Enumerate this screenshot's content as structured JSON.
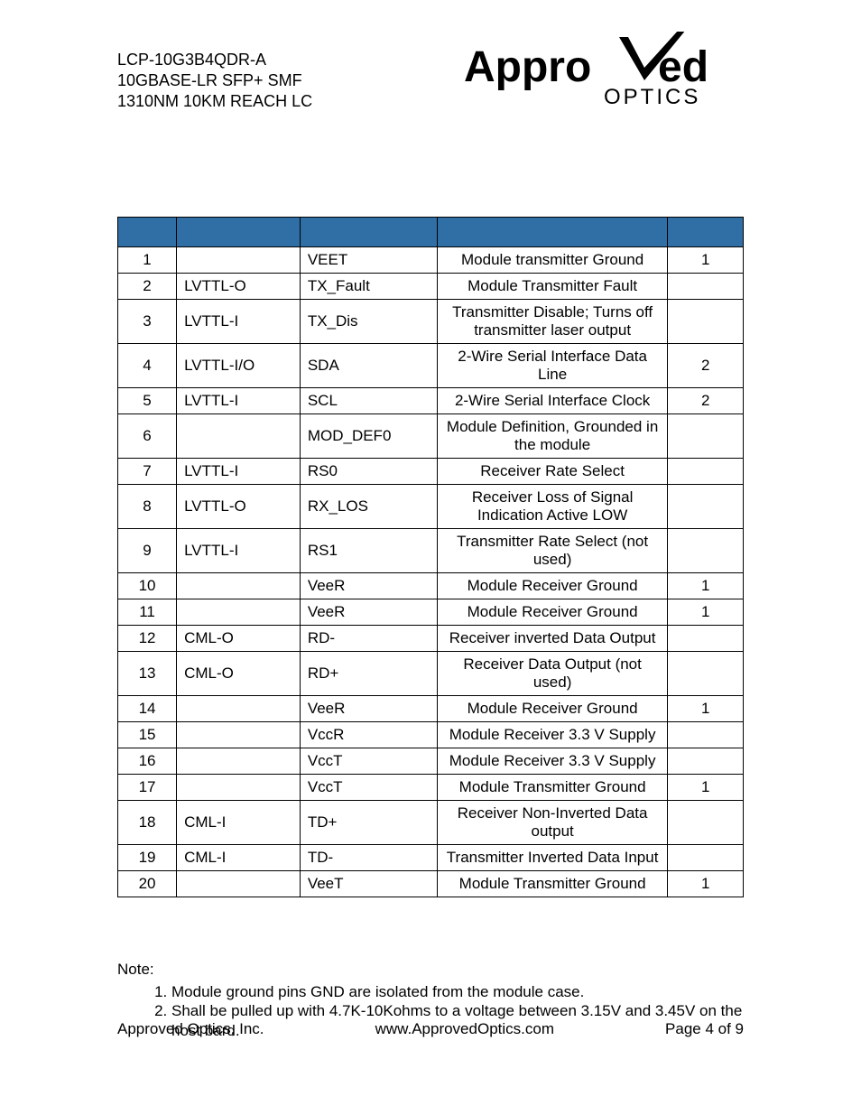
{
  "header": {
    "line1": "LCP-10G3B4QDR-A",
    "line2": "10GBASE-LR SFP+ SMF",
    "line3": "1310NM 10KM REACH LC"
  },
  "logo": {
    "word_main": "Appro",
    "word_tail": "ed",
    "subtitle": "OPTICS",
    "color": "#000000"
  },
  "table": {
    "header_bg": "#2f6fa6",
    "rows": [
      {
        "pin": "1",
        "logic": "",
        "symbol": "VEET",
        "desc": "Module transmitter Ground",
        "note": "1"
      },
      {
        "pin": "2",
        "logic": "LVTTL-O",
        "symbol": "TX_Fault",
        "desc": "Module Transmitter Fault",
        "note": ""
      },
      {
        "pin": "3",
        "logic": "LVTTL-I",
        "symbol": "TX_Dis",
        "desc": "Transmitter Disable; Turns off transmitter laser output",
        "note": ""
      },
      {
        "pin": "4",
        "logic": "LVTTL-I/O",
        "symbol": "SDA",
        "desc": "2-Wire Serial Interface Data Line",
        "note": "2"
      },
      {
        "pin": "5",
        "logic": "LVTTL-I",
        "symbol": "SCL",
        "desc": "2-Wire Serial Interface Clock",
        "note": "2"
      },
      {
        "pin": "6",
        "logic": "",
        "symbol": "MOD_DEF0",
        "desc": "Module Definition, Grounded in the module",
        "note": ""
      },
      {
        "pin": "7",
        "logic": "LVTTL-I",
        "symbol": "RS0",
        "desc": "Receiver Rate Select",
        "note": ""
      },
      {
        "pin": "8",
        "logic": "LVTTL-O",
        "symbol": "RX_LOS",
        "desc": "Receiver Loss of Signal Indication Active LOW",
        "note": ""
      },
      {
        "pin": "9",
        "logic": "LVTTL-I",
        "symbol": "RS1",
        "desc": "Transmitter Rate Select (not used)",
        "note": ""
      },
      {
        "pin": "10",
        "logic": "",
        "symbol": "VeeR",
        "desc": "Module Receiver Ground",
        "note": "1"
      },
      {
        "pin": "11",
        "logic": "",
        "symbol": "VeeR",
        "desc": "Module Receiver Ground",
        "note": "1"
      },
      {
        "pin": "12",
        "logic": "CML-O",
        "symbol": "RD-",
        "desc": "Receiver inverted Data Output",
        "note": ""
      },
      {
        "pin": "13",
        "logic": "CML-O",
        "symbol": "RD+",
        "desc": "Receiver Data Output (not used)",
        "note": ""
      },
      {
        "pin": "14",
        "logic": "",
        "symbol": "VeeR",
        "desc": "Module Receiver Ground",
        "note": "1"
      },
      {
        "pin": "15",
        "logic": "",
        "symbol": "VccR",
        "desc": "Module Receiver 3.3 V Supply",
        "note": ""
      },
      {
        "pin": "16",
        "logic": "",
        "symbol": "VccT",
        "desc": "Module Receiver 3.3 V Supply",
        "note": ""
      },
      {
        "pin": "17",
        "logic": "",
        "symbol": "VccT",
        "desc": "Module Transmitter Ground",
        "note": "1"
      },
      {
        "pin": "18",
        "logic": "CML-I",
        "symbol": "TD+",
        "desc": "Receiver Non-Inverted Data output",
        "note": ""
      },
      {
        "pin": "19",
        "logic": "CML-I",
        "symbol": "TD-",
        "desc": "Transmitter Inverted Data Input",
        "note": ""
      },
      {
        "pin": "20",
        "logic": "",
        "symbol": "VeeT",
        "desc": "Module Transmitter Ground",
        "note": "1"
      }
    ]
  },
  "notes": {
    "title": "Note:",
    "items": [
      "Module ground pins GND are isolated from the module case.",
      "Shall be pulled up with 4.7K-10Kohms to a voltage between 3.15V and 3.45V on the host bard."
    ]
  },
  "footer": {
    "company": "Approved Optics, Inc.",
    "url": "www.ApprovedOptics.com",
    "page": "Page 4 of 9"
  }
}
